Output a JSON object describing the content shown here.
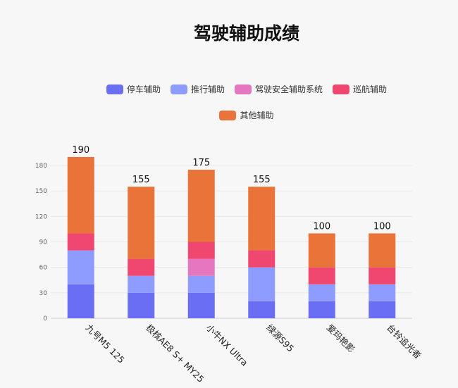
{
  "chart_data": {
    "type": "bar",
    "stacked": true,
    "title": "驾驶辅助成绩",
    "categories": [
      "九号M5 125",
      "极核AE8 S+ MY25",
      "小牛NX Ultra",
      "绿源S95",
      "爱玛艳影",
      "台铃追光者"
    ],
    "series": [
      {
        "name": "停车辅助",
        "color": "#6a6ef2",
        "values": [
          40,
          30,
          30,
          20,
          20,
          20
        ]
      },
      {
        "name": "推行辅助",
        "color": "#8f9cff",
        "values": [
          40,
          20,
          20,
          40,
          20,
          20
        ]
      },
      {
        "name": "驾驶安全辅助系统",
        "color": "#e477c0",
        "values": [
          0,
          0,
          20,
          0,
          0,
          0
        ]
      },
      {
        "name": "巡航辅助",
        "color": "#ef476f",
        "values": [
          20,
          20,
          20,
          20,
          20,
          20
        ]
      },
      {
        "name": "其他辅助",
        "color": "#e97338",
        "values": [
          90,
          85,
          85,
          75,
          40,
          40
        ]
      }
    ],
    "totals": [
      190,
      155,
      175,
      155,
      100,
      100
    ],
    "yticks": [
      "0",
      "30",
      "60",
      "90",
      "120",
      "150",
      "180"
    ],
    "ylim": [
      0,
      195
    ],
    "grid": true,
    "legend_position": "top"
  }
}
